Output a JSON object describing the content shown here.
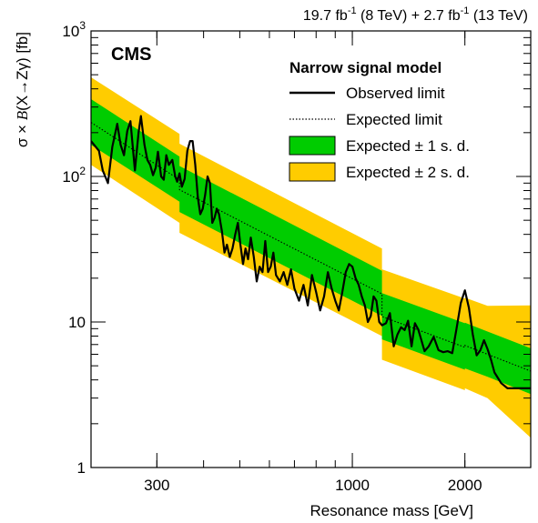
{
  "chart_data": {
    "type": "line",
    "experiment_label": "CMS",
    "lumi_label": {
      "part1_value": "19.7 fb",
      "part1_exp": "-1",
      "part1_energy": " (8 TeV) + 2.7 fb",
      "part2_exp": "-1",
      "part2_energy": " (13 TeV)"
    },
    "xlabel": "Resonance mass [GeV]",
    "ylabel": {
      "pre": "σ × ",
      "italic": "B",
      "post": "(X→Zγ) [fb]"
    },
    "x_scale": "log",
    "y_scale": "log",
    "xlim": [
      200,
      3000
    ],
    "ylim": [
      1,
      1000
    ],
    "x_ticks": [
      {
        "value": 300,
        "label": "300"
      },
      {
        "value": 1000,
        "label": "1000"
      },
      {
        "value": 2000,
        "label": "2000"
      }
    ],
    "y_ticks": [
      {
        "value": 1,
        "label": "1"
      },
      {
        "value": 10,
        "label": "10"
      },
      {
        "value": 100,
        "label": "10",
        "sup": "2"
      },
      {
        "value": 1000,
        "label": "10",
        "sup": "3"
      }
    ],
    "legend": {
      "title": "Narrow signal model",
      "position": "top-right",
      "entries": [
        {
          "label": "Observed limit",
          "style": "solid-line"
        },
        {
          "label": "Expected limit",
          "style": "dotted-line"
        },
        {
          "label": "Expected ± 1 s. d.",
          "style": "green-band"
        },
        {
          "label": "Expected ± 2 s. d.",
          "style": "yellow-band"
        }
      ]
    },
    "colors": {
      "band_1sd": "#00CC00",
      "band_2sd": "#FFCC00",
      "observed": "#000000",
      "expected": "#000000"
    },
    "series": [
      {
        "name": "Expected limit",
        "x": [
          200,
          345,
          345,
          1200,
          1200,
          2000,
          2000,
          3000
        ],
        "y": [
          235,
          95,
          81,
          15.6,
          10.9,
          6.7,
          6.9,
          4.6
        ]
      },
      {
        "name": "Expected ± 1 s. d.",
        "x": [
          200,
          345,
          345,
          1200,
          1200,
          2000,
          2000,
          2300,
          3000
        ],
        "low": [
          165,
          67,
          57,
          11,
          7.6,
          4.7,
          4.8,
          4.2,
          3.2
        ],
        "high": [
          340,
          137,
          118,
          22.5,
          15.8,
          9.8,
          9.9,
          8.6,
          6.6
        ]
      },
      {
        "name": "Expected ± 2 s. d.",
        "x": [
          200,
          345,
          345,
          1200,
          1200,
          2000,
          2000,
          2300,
          3000
        ],
        "low": [
          120,
          48,
          41,
          8,
          5.5,
          3.4,
          3.5,
          3.0,
          1.6
        ],
        "high": [
          480,
          196,
          168,
          32,
          23,
          14.5,
          14.7,
          12.9,
          13.0
        ]
      },
      {
        "name": "Observed limit",
        "x": [
          200,
          210,
          215,
          222,
          228,
          235,
          240,
          245,
          250,
          255,
          262,
          268,
          272,
          278,
          283,
          288,
          293,
          298,
          302,
          308,
          313,
          318,
          323,
          330,
          336,
          340,
          345,
          350,
          356,
          362,
          368,
          374,
          380,
          386,
          392,
          398,
          404,
          410,
          416,
          422,
          428,
          434,
          440,
          448,
          455,
          462,
          470,
          478,
          486,
          494,
          502,
          510,
          518,
          526,
          535,
          545,
          555,
          565,
          575,
          585,
          595,
          605,
          615,
          625,
          640,
          655,
          670,
          685,
          700,
          720,
          740,
          760,
          780,
          800,
          820,
          840,
          860,
          880,
          900,
          920,
          940,
          960,
          980,
          1000,
          1020,
          1040,
          1060,
          1080,
          1100,
          1120,
          1140,
          1160,
          1180,
          1200,
          1230,
          1260,
          1290,
          1320,
          1350,
          1380,
          1410,
          1440,
          1470,
          1500,
          1530,
          1560,
          1600,
          1650,
          1700,
          1750,
          1800,
          1850,
          1900,
          1950,
          2000,
          2050,
          2100,
          2150,
          2200,
          2250,
          2300,
          2350,
          2400,
          2500,
          2600,
          2800,
          3000
        ],
        "y": [
          175,
          150,
          110,
          90,
          160,
          230,
          165,
          140,
          205,
          240,
          110,
          200,
          260,
          165,
          130,
          120,
          102,
          115,
          148,
          100,
          95,
          140,
          120,
          130,
          100,
          92,
          105,
          85,
          96,
          150,
          175,
          175,
          120,
          72,
          55,
          60,
          75,
          100,
          90,
          48,
          52,
          60,
          55,
          42,
          30,
          34,
          28,
          32,
          40,
          48,
          34,
          25,
          32,
          27,
          38,
          28,
          19,
          24,
          22,
          36,
          22,
          24,
          30,
          21,
          19,
          22,
          18,
          23,
          17,
          14,
          18,
          13,
          21,
          16,
          12,
          15,
          22,
          17,
          14,
          12,
          16,
          22,
          25,
          24,
          20,
          18,
          15,
          13,
          10,
          11,
          15,
          14,
          10,
          9.5,
          9.8,
          11.5,
          6.8,
          8.2,
          9.2,
          8.8,
          10.2,
          6.8,
          9.8,
          8.9,
          7.5,
          6.3,
          6.8,
          7.9,
          6.4,
          6.2,
          6.3,
          6.1,
          9.0,
          13.5,
          16.5,
          12.5,
          8.2,
          5.9,
          6.4,
          7.5,
          6.5,
          5.5,
          4.5,
          3.8,
          3.5,
          3.5,
          3.5
        ]
      }
    ]
  }
}
